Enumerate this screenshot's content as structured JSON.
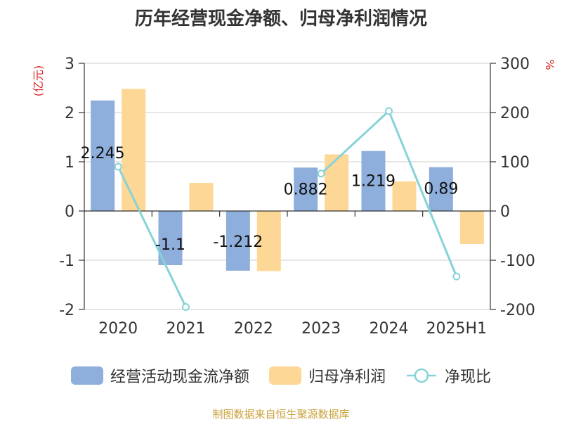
{
  "title": "历年经营现金净额、归母净利润情况",
  "source": "制图数据来自恒生聚源数据库",
  "colors": {
    "cash": "#8eaedb",
    "profit": "#fdd795",
    "ratio": "#86d3d7",
    "axis_unit": "#d62728"
  },
  "chart_data": {
    "type": "bar",
    "categories": [
      "2020",
      "2021",
      "2022",
      "2023",
      "2024",
      "2025H1"
    ],
    "left_axis": {
      "unit": "(亿元)",
      "ylim": [
        -2,
        3
      ],
      "ticks": [
        "3",
        "2",
        "1",
        "0",
        "-1",
        "-2"
      ]
    },
    "right_axis": {
      "unit": "%",
      "ylim": [
        -200,
        300
      ],
      "ticks": [
        "300",
        "200",
        "100",
        "0",
        "-100",
        "-200"
      ]
    },
    "series": [
      {
        "name": "经营活动现金流净额",
        "type": "bar",
        "axis": "left",
        "values": [
          2.245,
          -1.1,
          -1.212,
          0.882,
          1.219,
          0.89
        ],
        "labels": [
          "2.245",
          "-1.1",
          "-1.212",
          "0.882",
          "1.219",
          "0.89"
        ]
      },
      {
        "name": "归母净利润",
        "type": "bar",
        "axis": "left",
        "values": [
          2.48,
          0.57,
          -1.22,
          1.15,
          0.6,
          -0.67
        ]
      },
      {
        "name": "净现比",
        "type": "line",
        "axis": "right",
        "values": [
          90,
          -195,
          null,
          76,
          203,
          -133
        ]
      }
    ],
    "grid": true,
    "legend": "bottom"
  }
}
